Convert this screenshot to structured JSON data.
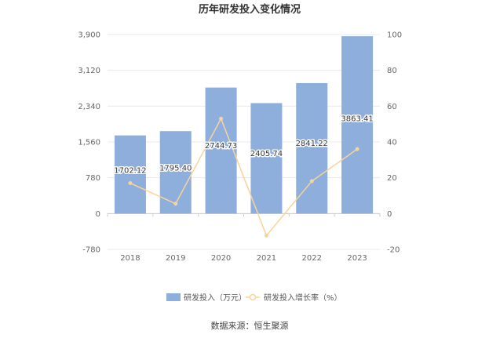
{
  "chart_data": {
    "type": "bar",
    "title": "历年研发投入变化情况",
    "categories": [
      "2018",
      "2019",
      "2020",
      "2021",
      "2022",
      "2023"
    ],
    "series": [
      {
        "name": "研发投入（万元）",
        "type": "bar",
        "axis": "left",
        "values": [
          1702.12,
          1795.4,
          2744.73,
          2405.74,
          2841.22,
          3863.41
        ],
        "labels": [
          "1702.12",
          "1795.40",
          "2744.73",
          "2405.74",
          "2841.22",
          "3863.41"
        ],
        "color": "#8eaedc"
      },
      {
        "name": "研发投入增长率（%）",
        "type": "line",
        "axis": "right",
        "values": [
          17,
          5.5,
          53,
          -12.3,
          18.1,
          36
        ],
        "color": "#f8d39a"
      }
    ],
    "y_left": {
      "ticks": [
        "-780",
        "0",
        "780",
        "1,560",
        "2,340",
        "3,120",
        "3,900"
      ],
      "range": [
        -780,
        3900
      ]
    },
    "y_right": {
      "ticks": [
        "-20",
        "0",
        "20",
        "40",
        "60",
        "80",
        "100"
      ],
      "range": [
        -20,
        100
      ]
    },
    "grid": true,
    "legend_position": "bottom"
  },
  "source_text": "数据来源：恒生聚源"
}
